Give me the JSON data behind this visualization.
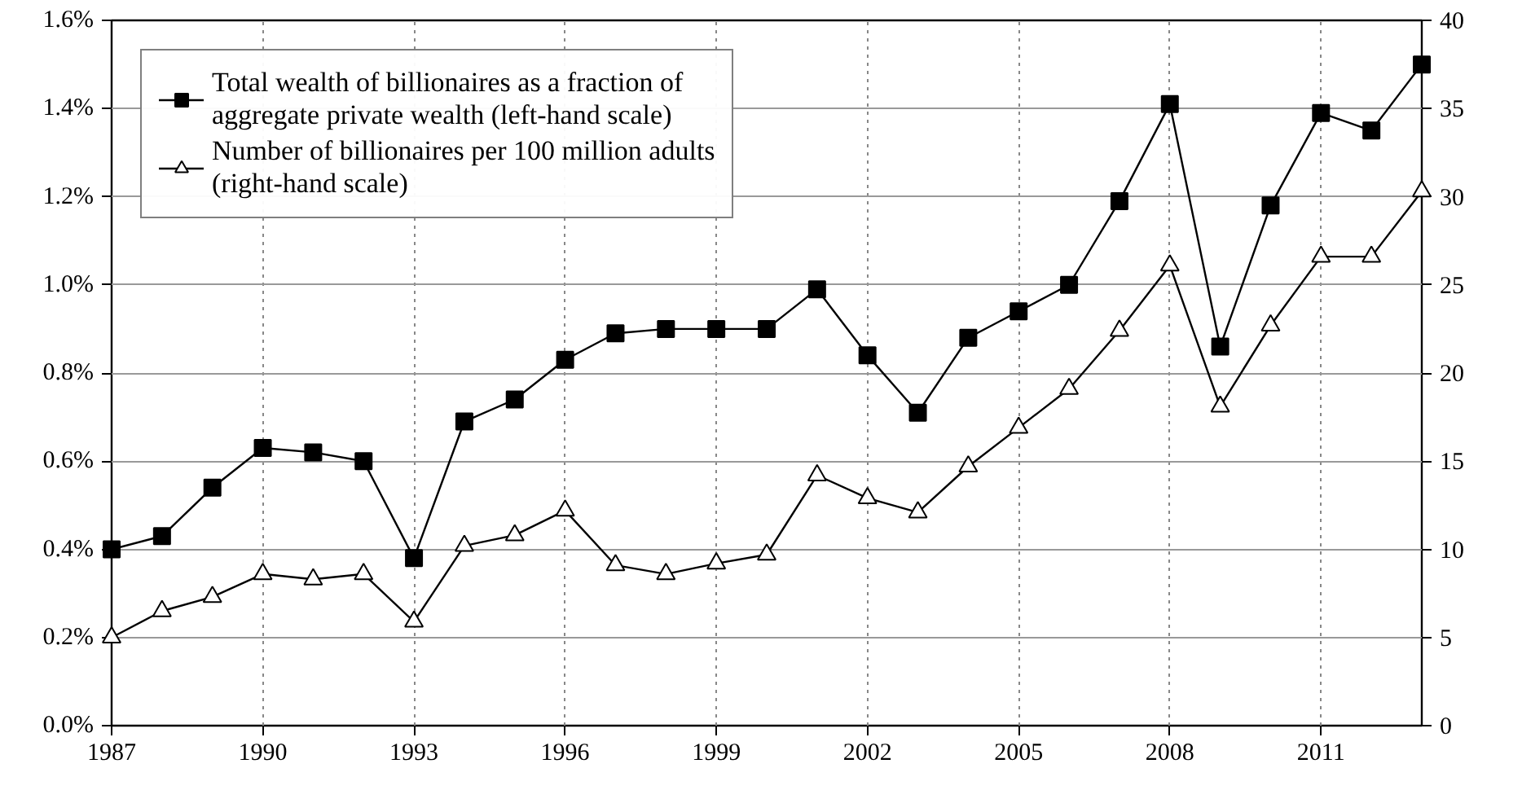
{
  "chart_data": {
    "type": "line",
    "x": [
      1987,
      1988,
      1989,
      1990,
      1991,
      1992,
      1993,
      1994,
      1995,
      1996,
      1997,
      1998,
      1999,
      2000,
      2001,
      2002,
      2003,
      2004,
      2005,
      2006,
      2007,
      2008,
      2009,
      2010,
      2011,
      2012,
      2013
    ],
    "series": [
      {
        "name": "Total wealth of billionaires as a fraction of aggregate private wealth (left-hand scale)",
        "color": "#000000",
        "marker": "square",
        "values": [
          0.4,
          0.43,
          0.54,
          0.63,
          0.62,
          0.6,
          0.38,
          0.69,
          0.74,
          0.83,
          0.89,
          0.9,
          0.9,
          0.9,
          0.99,
          0.84,
          0.71,
          0.88,
          0.94,
          1.0,
          1.19,
          1.41,
          0.86,
          1.18,
          1.39,
          1.35,
          1.5
        ]
      },
      {
        "name": "Number of billionaires per 100 million adults (right-hand scale)",
        "color": "#000000",
        "marker": "triangle",
        "axis": "y2",
        "values": [
          5.0,
          6.5,
          7.3,
          8.6,
          8.3,
          8.6,
          5.9,
          10.2,
          10.8,
          12.2,
          9.1,
          8.6,
          9.2,
          9.7,
          14.2,
          12.9,
          12.1,
          14.7,
          16.9,
          19.1,
          22.4,
          26.1,
          18.1,
          22.7,
          26.6,
          26.6,
          30.3
        ]
      }
    ],
    "xlim": [
      1987,
      2013
    ],
    "xticks": [
      1987,
      1990,
      1993,
      1996,
      1999,
      2002,
      2005,
      2008,
      2011
    ],
    "ylim": [
      0,
      1.6
    ],
    "yticks": [
      {
        "value": 0,
        "label": "0.0%"
      },
      {
        "value": 0.2,
        "label": "0.2%"
      },
      {
        "value": 0.4,
        "label": "0.4%"
      },
      {
        "value": 0.6,
        "label": "0.6%"
      },
      {
        "value": 0.8,
        "label": "0.8%"
      },
      {
        "value": 1.0,
        "label": "1.0%"
      },
      {
        "value": 1.2,
        "label": "1.2%"
      },
      {
        "value": 1.4,
        "label": "1.4%"
      },
      {
        "value": 1.6,
        "label": "1.6%"
      }
    ],
    "y2lim": [
      0,
      40
    ],
    "y2ticks": [
      0,
      5,
      10,
      15,
      20,
      25,
      30,
      35,
      40
    ],
    "grid": true,
    "legend": "top left",
    "line_style": "solid"
  }
}
